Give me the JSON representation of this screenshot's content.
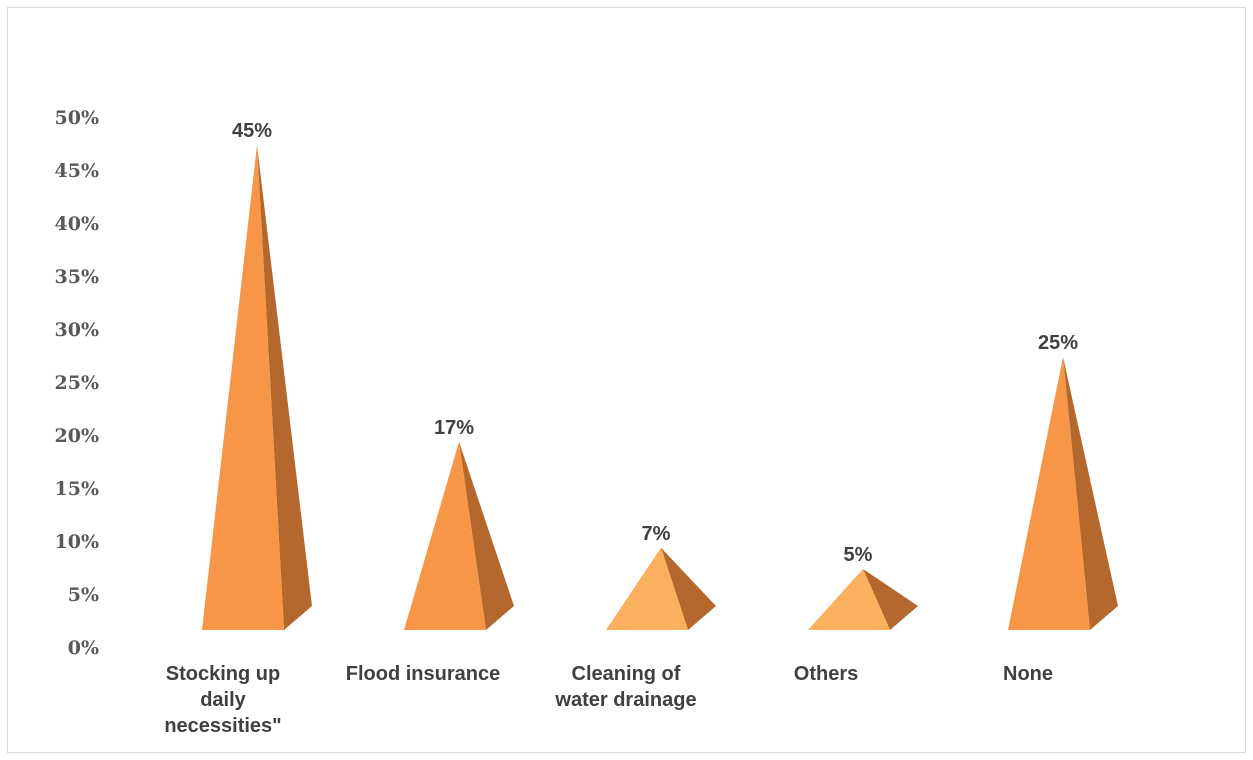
{
  "chart_data": {
    "type": "bar",
    "bar_shape": "pyramid",
    "categories": [
      [
        "Stocking up",
        "daily",
        "necessities\""
      ],
      [
        "Flood insurance"
      ],
      [
        "Cleaning of",
        "water drainage"
      ],
      [
        "Others"
      ],
      [
        "None"
      ]
    ],
    "values": [
      45,
      17,
      7,
      5,
      25
    ],
    "data_labels": [
      "45%",
      "17%",
      "7%",
      "5%",
      "25%"
    ],
    "y_ticks": [
      "0%",
      "5%",
      "10%",
      "15%",
      "20%",
      "25%",
      "30%",
      "35%",
      "40%",
      "45%",
      "50%"
    ],
    "ylim": [
      0,
      50
    ],
    "grid": false,
    "legend": "none",
    "colors": {
      "front": "#f79646",
      "front_light": "#fbb05e",
      "side": "#b4682e"
    }
  }
}
